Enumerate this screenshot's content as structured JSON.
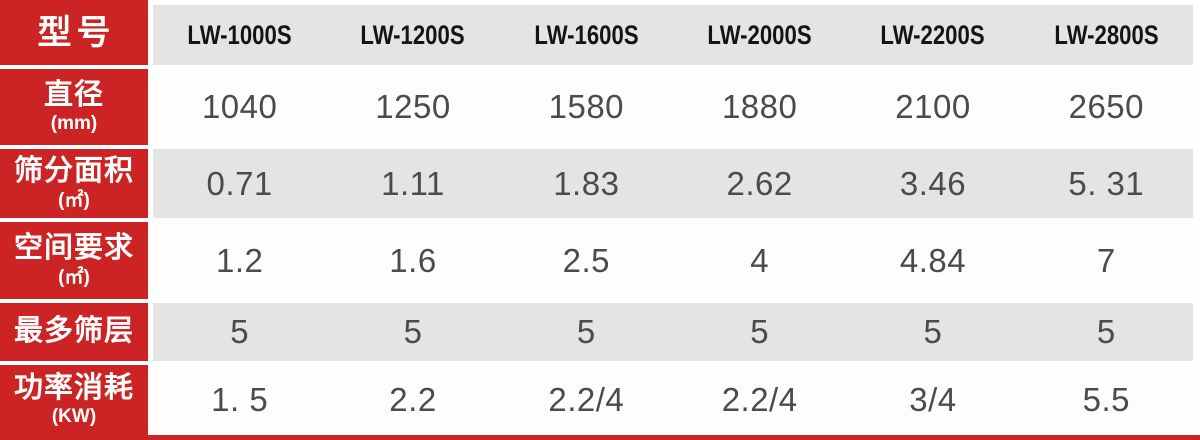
{
  "colors": {
    "accent_red": "#cc2424",
    "row_gray": "#e4e4e3",
    "row_white": "#fdfdfd",
    "label_text": "#ffffff",
    "header_text": "#141414",
    "value_text": "#4b4b4b"
  },
  "table": {
    "corner_label": "型号",
    "models": [
      "LW-1000S",
      "LW-1200S",
      "LW-1600S",
      "LW-2000S",
      "LW-2200S",
      "LW-2800S"
    ],
    "rows": [
      {
        "label": "直径",
        "unit": "(mm)",
        "values": [
          "1040",
          "1250",
          "1580",
          "1880",
          "2100",
          "2650"
        ]
      },
      {
        "label": "筛分面积",
        "unit": "(㎡)",
        "values": [
          "0.71",
          "1.11",
          "1.83",
          "2.62",
          "3.46",
          "5. 31"
        ]
      },
      {
        "label": "空间要求",
        "unit": "(㎡)",
        "values": [
          "1.2",
          "1.6",
          "2.5",
          "4",
          "4.84",
          "7"
        ]
      },
      {
        "label": "最多筛层",
        "unit": "",
        "values": [
          "5",
          "5",
          "5",
          "5",
          "5",
          "5"
        ]
      },
      {
        "label": "功率消耗",
        "unit": "(KW)",
        "values": [
          "1. 5",
          "2.2",
          "2.2/4",
          "2.2/4",
          "3/4",
          "5.5"
        ]
      }
    ]
  },
  "chart_data": {
    "type": "table",
    "title": "",
    "columns": [
      "型号",
      "LW-1000S",
      "LW-1200S",
      "LW-1600S",
      "LW-2000S",
      "LW-2200S",
      "LW-2800S"
    ],
    "rows": [
      [
        "直径 (mm)",
        "1040",
        "1250",
        "1580",
        "1880",
        "2100",
        "2650"
      ],
      [
        "筛分面积 (㎡)",
        "0.71",
        "1.11",
        "1.83",
        "2.62",
        "3.46",
        "5.31"
      ],
      [
        "空间要求 (㎡)",
        "1.2",
        "1.6",
        "2.5",
        "4",
        "4.84",
        "7"
      ],
      [
        "最多筛层",
        "5",
        "5",
        "5",
        "5",
        "5",
        "5"
      ],
      [
        "功率消耗 (KW)",
        "1.5",
        "2.2",
        "2.2/4",
        "2.2/4",
        "3/4",
        "5.5"
      ]
    ]
  }
}
